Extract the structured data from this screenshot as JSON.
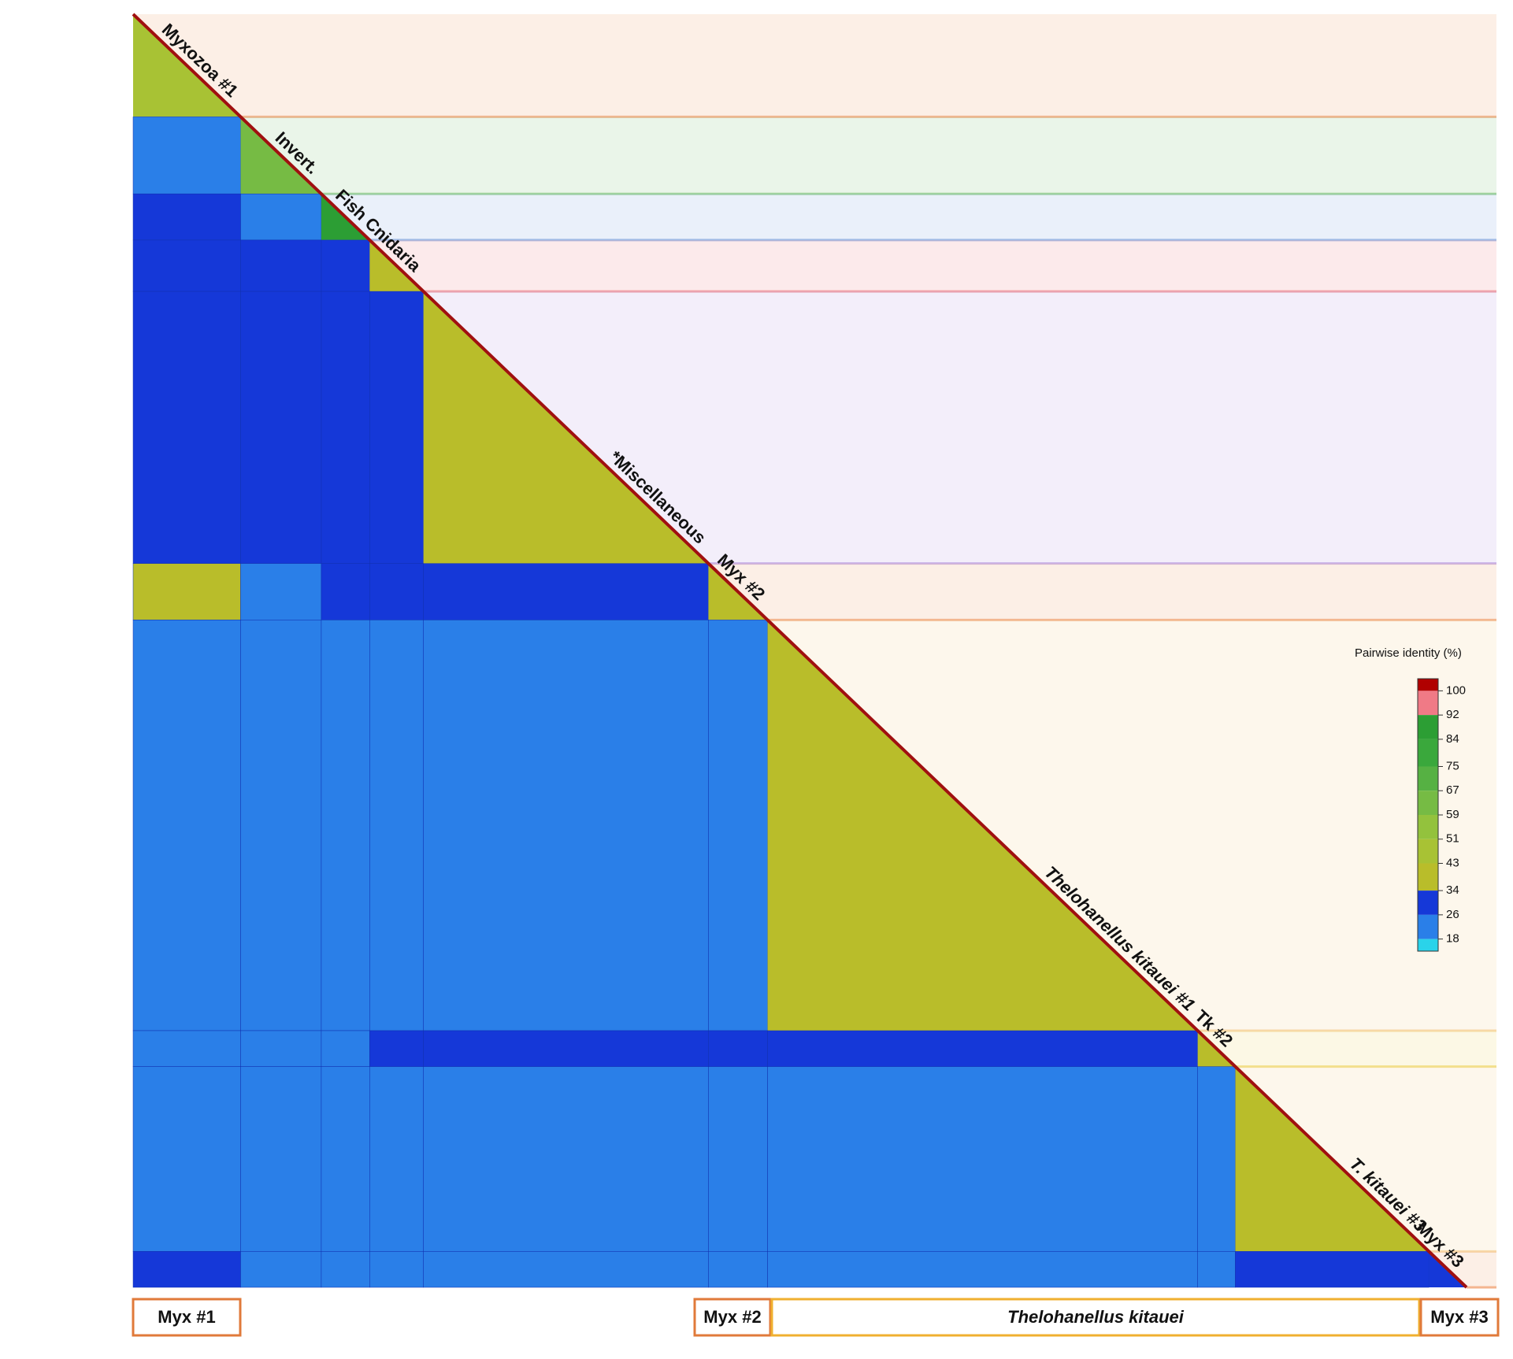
{
  "chart_data": {
    "type": "heatmap",
    "groups": [
      "Myxozoa #1",
      "Invert.",
      "Fish",
      "Cnidaria",
      "*Miscellaneous",
      "Myx #2",
      "Thelohanellus kitauei #1",
      "Tk #2",
      "T. kitauei #3",
      "Myx #3"
    ],
    "sizes": [
      20,
      15,
      9,
      10,
      53,
      11,
      80,
      7,
      36,
      7
    ],
    "band_colors": [
      "#f3b58f",
      "#9fd39a",
      "#9fbbe6",
      "#f0a0a6",
      "#c9b2e8",
      "#f3b58f",
      "#f8d9a8",
      "#f3e08a",
      "#f8d9a8",
      "#f3b58f"
    ],
    "matrix": [
      [
        45
      ],
      [
        24,
        62
      ],
      [
        27,
        24,
        90
      ],
      [
        30,
        28,
        30,
        40
      ],
      [
        28,
        26,
        28,
        33,
        38
      ],
      [
        35,
        22,
        26,
        30,
        30,
        40
      ],
      [
        22,
        22,
        22,
        23,
        22,
        24,
        40
      ],
      [
        24,
        22,
        24,
        26,
        26,
        30,
        33,
        42
      ],
      [
        22,
        22,
        22,
        22,
        22,
        24,
        22,
        24,
        38
      ],
      [
        26,
        22,
        22,
        24,
        23,
        25,
        23,
        24,
        30,
        30
      ]
    ],
    "brackets": [
      "Myx #1",
      "Myx #2",
      "Thelohanellus kitauei",
      "Myx #3"
    ],
    "colorbar": {
      "title": "Pairwise identity (%)",
      "clim": [
        14,
        104
      ],
      "ticks": [
        100,
        92,
        84,
        75,
        67,
        59,
        51,
        43,
        34,
        26,
        18
      ],
      "colors": [
        "#b00000",
        "#f07a86",
        "#2c9e34",
        "#3aa83c",
        "#56b143",
        "#76bb44",
        "#93c23d",
        "#a8c234",
        "#b9bd2a",
        "#1538d8",
        "#2a7fe8",
        "#2ad3ea"
      ]
    }
  }
}
